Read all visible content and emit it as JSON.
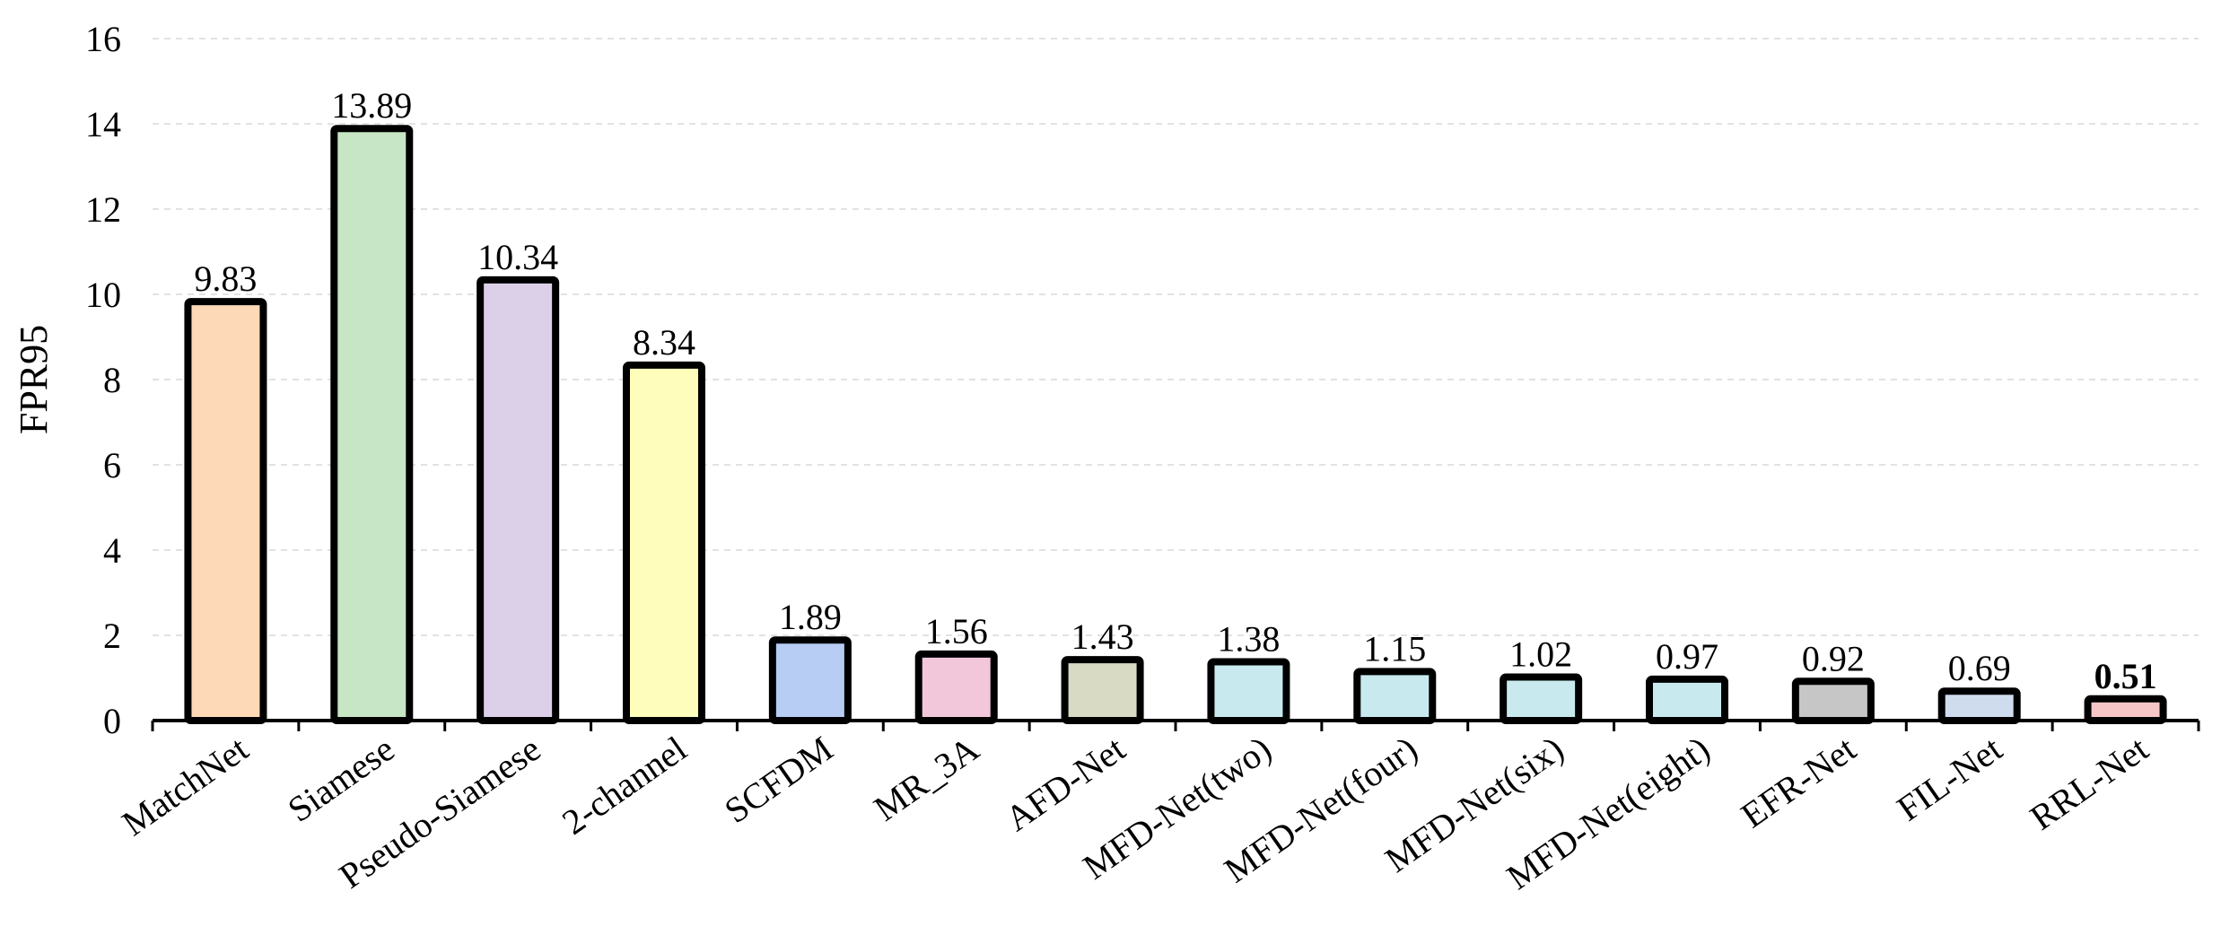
{
  "chart_data": {
    "type": "bar",
    "ylabel": "FPR95",
    "xlabel": "",
    "ylim": [
      0,
      16
    ],
    "yticks": [
      0,
      2,
      4,
      6,
      8,
      10,
      12,
      14,
      16
    ],
    "grid": true,
    "categories": [
      "MatchNet",
      "Siamese",
      "Pseudo-Siamese",
      "2-channel",
      "SCFDM",
      "MR_3A",
      "AFD-Net",
      "MFD-Net(two)",
      "MFD-Net(four)",
      "MFD-Net(six)",
      "MFD-Net(eight)",
      "EFR-Net",
      "FIL-Net",
      "RRL-Net"
    ],
    "values": [
      9.83,
      13.89,
      10.34,
      8.34,
      1.89,
      1.56,
      1.43,
      1.38,
      1.15,
      1.02,
      0.97,
      0.92,
      0.69,
      0.51
    ],
    "value_labels": [
      "9.83",
      "13.89",
      "10.34",
      "8.34",
      "1.89",
      "1.56",
      "1.43",
      "1.38",
      "1.15",
      "1.02",
      "0.97",
      "0.92",
      "0.69",
      "0.51"
    ],
    "bold_labels": [
      13
    ],
    "colors": [
      "#fdd9b7",
      "#c7e6c5",
      "#dccfe8",
      "#fefdbc",
      "#b7cdf4",
      "#f2c7da",
      "#d9dac4",
      "#c8eaee",
      "#c8eaee",
      "#c8eaee",
      "#c8eaee",
      "#c6c6c6",
      "#cfdcee",
      "#f6c6c6"
    ]
  }
}
